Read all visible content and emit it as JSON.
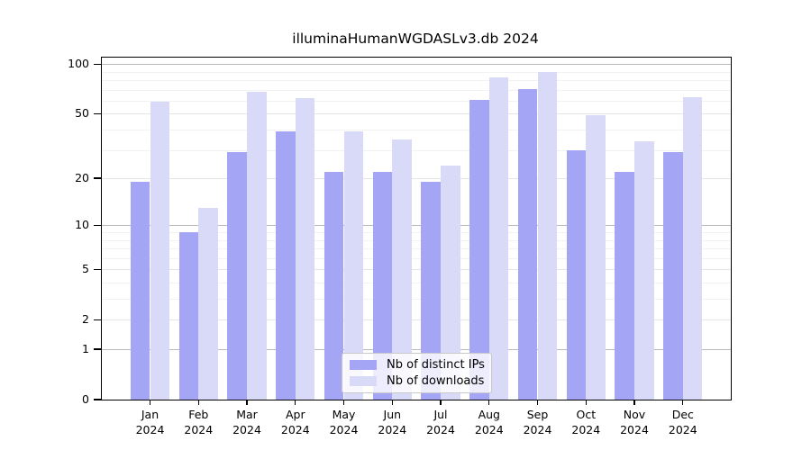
{
  "title": "illuminaHumanWGDASLv3.db 2024",
  "chart_data": {
    "type": "bar",
    "scale": "log1p",
    "title": "illuminaHumanWGDASLv3.db 2024",
    "categories": [
      "Jan",
      "Feb",
      "Mar",
      "Apr",
      "May",
      "Jun",
      "Jul",
      "Aug",
      "Sep",
      "Oct",
      "Nov",
      "Dec"
    ],
    "x_tick_year": "2024",
    "series": [
      {
        "name": "Nb of distinct IPs",
        "color": "#a5a5f6",
        "values": [
          19,
          9,
          29,
          39,
          22,
          22,
          19,
          61,
          71,
          30,
          22,
          29
        ]
      },
      {
        "name": "Nb of downloads",
        "color": "#d9d9f8",
        "values": [
          59,
          13,
          68,
          62,
          39,
          35,
          24,
          83,
          90,
          49,
          34,
          63
        ]
      }
    ],
    "ylim": [
      0,
      100
    ],
    "yticks": [
      0,
      1,
      2,
      5,
      10,
      20,
      50,
      100
    ],
    "major_gridlines": [
      1,
      10,
      100
    ],
    "medium_gridlines": [
      2,
      5,
      20,
      50
    ],
    "minor_gridlines": [
      3,
      4,
      6,
      7,
      8,
      9,
      30,
      40,
      60,
      70,
      80,
      90
    ],
    "grid": true,
    "legend_position": "bottom-center-inside",
    "axis_color": "#000000"
  }
}
